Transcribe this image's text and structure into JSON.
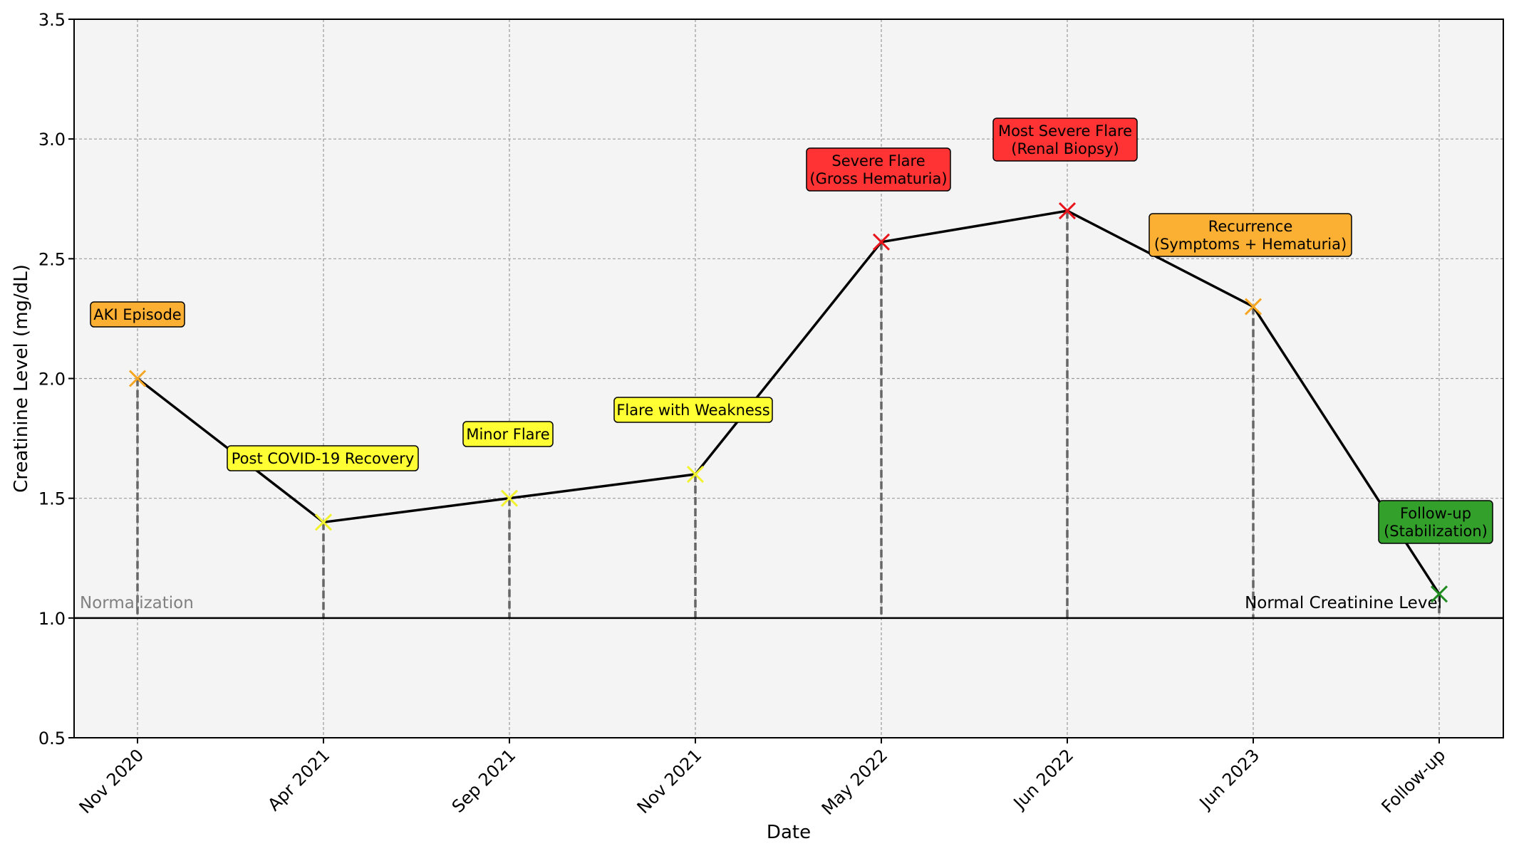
{
  "chart_data": {
    "type": "line",
    "xlabel": "Date",
    "ylabel": "Creatinine Level (mg/dL)",
    "ylim": [
      0.5,
      3.5
    ],
    "yticks": [
      "0.5",
      "1.0",
      "1.5",
      "2.0",
      "2.5",
      "3.0",
      "3.5"
    ],
    "grid": true,
    "categories": [
      "Nov 2020",
      "Apr 2021",
      "Sep 2021",
      "Nov 2021",
      "May 2022",
      "Jun 2022",
      "Jun 2023",
      "Follow-up"
    ],
    "values": [
      2.0,
      1.4,
      1.5,
      1.6,
      2.57,
      2.7,
      2.3,
      1.1
    ],
    "point_colors": [
      "#f5a623",
      "#f2f22e",
      "#f2f22e",
      "#f2f22e",
      "#e8141c",
      "#e8141c",
      "#f5a623",
      "#1f8a1f"
    ],
    "annotations": [
      {
        "lines": [
          "AKI Episode"
        ],
        "color": "#fbb034"
      },
      {
        "lines": [
          "Post COVID-19 Recovery"
        ],
        "color": "#ffff33"
      },
      {
        "lines": [
          "Minor Flare"
        ],
        "color": "#ffff33"
      },
      {
        "lines": [
          "Flare with Weakness"
        ],
        "color": "#ffff33"
      },
      {
        "lines": [
          "Severe Flare",
          "(Gross Hematuria)"
        ],
        "color": "#ff3333"
      },
      {
        "lines": [
          "Most Severe Flare",
          "(Renal Biopsy)"
        ],
        "color": "#ff3333"
      },
      {
        "lines": [
          "Recurrence",
          "(Symptoms + Hematuria)"
        ],
        "color": "#fbb034"
      },
      {
        "lines": [
          "Follow-up",
          "(Stabilization)"
        ],
        "color": "#33a02c"
      }
    ],
    "reference_line": {
      "value": 1.0,
      "label_left": "Normalization",
      "label_right": "Normal Creatinine Level"
    }
  }
}
